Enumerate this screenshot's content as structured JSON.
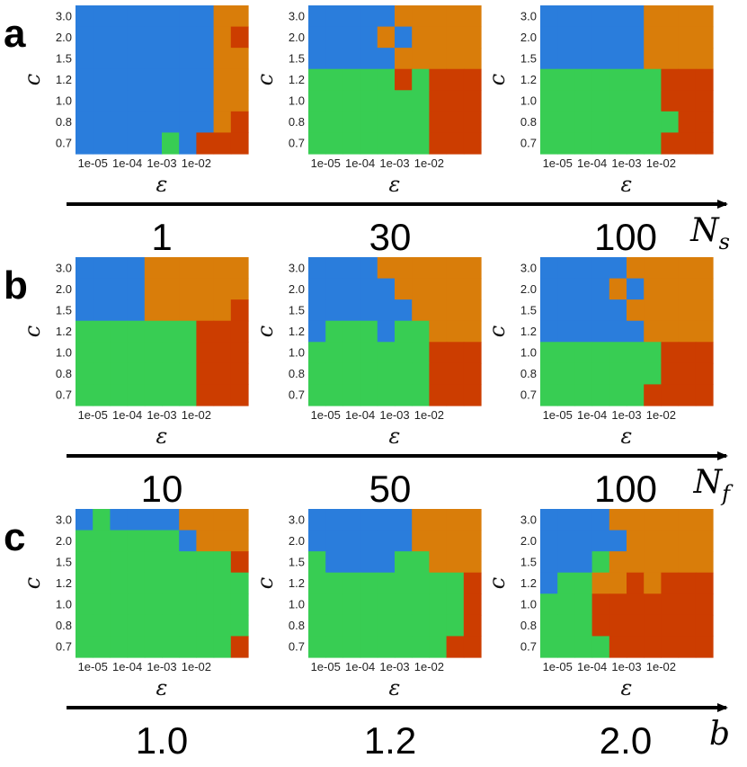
{
  "colors": {
    "1": "#2a7ddc",
    "2": "#d97d0a",
    "3": "#cc3d00",
    "4": "#38cd53"
  },
  "axis": {
    "x_label": "ε",
    "y_label": "c",
    "x_ticks": [
      "1e-05",
      "1e-04",
      "1e-03",
      "1e-02"
    ],
    "y_ticks": [
      "3.0",
      "2.0",
      "1.5",
      "1.2",
      "1.0",
      "0.8",
      "0.7"
    ]
  },
  "chart_data": [
    {
      "row": "a",
      "param_name": "N",
      "param_sub": "s",
      "panels": [
        {
          "type": "heatmap",
          "param_value": "1",
          "grid": [
            "1111111122",
            "1111111123",
            "1111111122",
            "1111111122",
            "1111111122",
            "1111111123",
            "1111141333"
          ]
        },
        {
          "type": "heatmap",
          "param_value": "30",
          "grid": [
            "1111122222",
            "1111212222",
            "1111122222",
            "4444434333",
            "4444444333",
            "4444444333",
            "4444444333"
          ]
        },
        {
          "type": "heatmap",
          "param_value": "100",
          "grid": [
            "1111112222",
            "1111112222",
            "1111112222",
            "4444444333",
            "4444444333",
            "4444444433",
            "4444444333"
          ]
        }
      ]
    },
    {
      "row": "b",
      "param_name": "N",
      "param_sub": "f",
      "panels": [
        {
          "type": "heatmap",
          "param_value": "10",
          "grid": [
            "1111222222",
            "1111222222",
            "1111222223",
            "4444444333",
            "4444444333",
            "4444444333",
            "4444444333"
          ]
        },
        {
          "type": "heatmap",
          "param_value": "50",
          "grid": [
            "1111222222",
            "1111122222",
            "1111112222",
            "1444144222",
            "4444444333",
            "4444444333",
            "4444444333"
          ]
        },
        {
          "type": "heatmap",
          "param_value": "100",
          "grid": [
            "1111122222",
            "1111212222",
            "1111122222",
            "1111112222",
            "4444444333",
            "4444444333",
            "4444443333"
          ]
        }
      ]
    },
    {
      "row": "c",
      "param_name": "b",
      "param_sub": "",
      "panels": [
        {
          "type": "heatmap",
          "param_value": "1.0",
          "grid": [
            "1411112222",
            "4444441222",
            "4444444443",
            "4444444444",
            "4444444444",
            "4444444444",
            "4444444443"
          ]
        },
        {
          "type": "heatmap",
          "param_value": "1.2",
          "grid": [
            "1111112222",
            "1111112222",
            "4111144222",
            "4444444443",
            "4444444443",
            "4444444443",
            "4444444433"
          ]
        },
        {
          "type": "heatmap",
          "param_value": "2.0",
          "grid": [
            "1111222222",
            "1111122222",
            "1114222222",
            "1442232333",
            "4443333333",
            "4443333333",
            "4444333333"
          ]
        }
      ]
    }
  ]
}
